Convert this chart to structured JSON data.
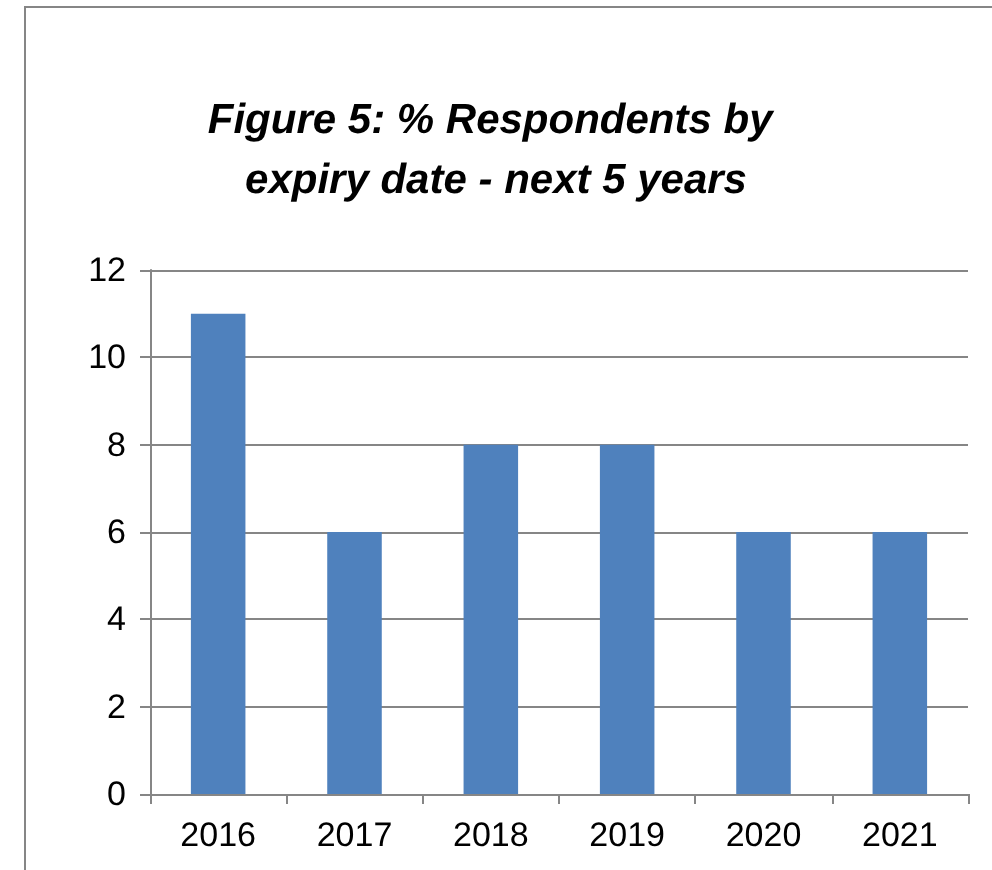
{
  "chart_data": {
    "type": "bar",
    "title": "Figure 5: % Respondents by expiry date - next 5 years",
    "categories": [
      "2016",
      "2017",
      "2018",
      "2019",
      "2020",
      "2021"
    ],
    "values": [
      11,
      6,
      8,
      8,
      6,
      6
    ],
    "color": "#4f81bd",
    "ylim": [
      0,
      12
    ],
    "yticks": [
      0,
      2,
      4,
      6,
      8,
      10,
      12
    ],
    "grid": "y"
  }
}
